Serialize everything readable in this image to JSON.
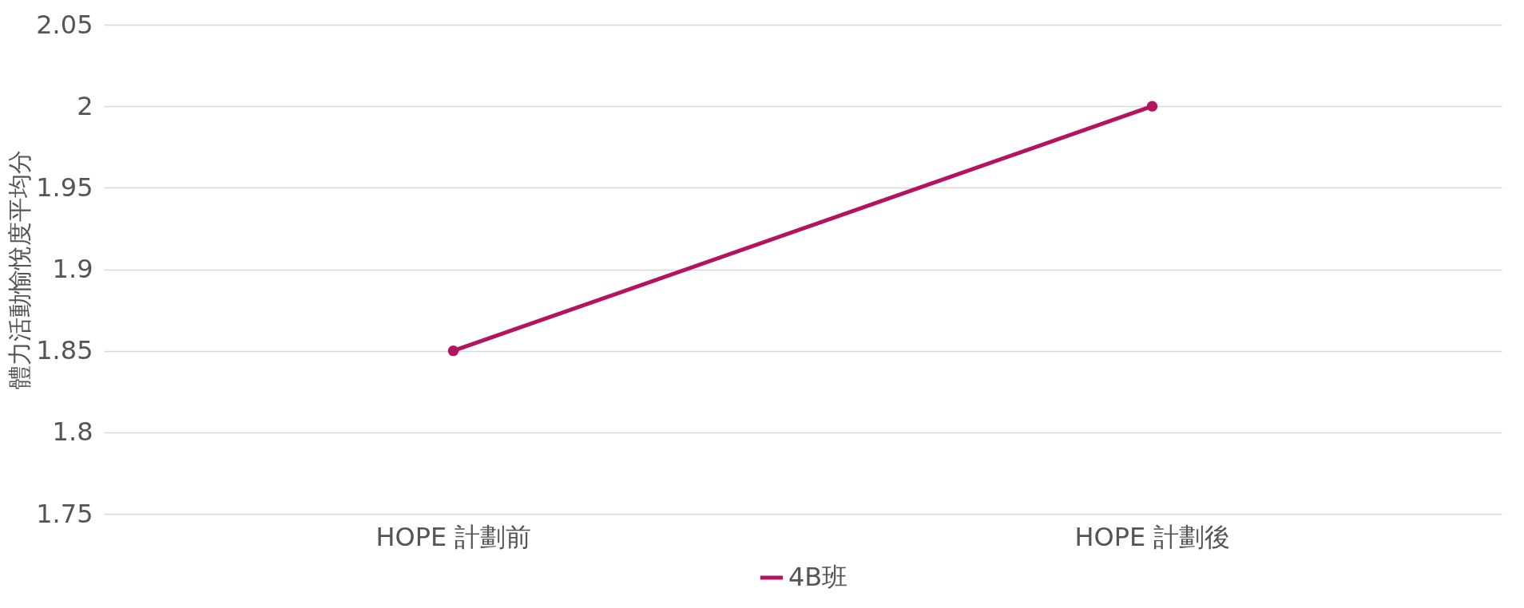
{
  "chart_data": {
    "type": "line",
    "ylabel": "體力活動愉悅度平均分",
    "categories": [
      "HOPE 計劃前",
      "HOPE 計劃後"
    ],
    "series": [
      {
        "name": "4B班",
        "color": "#b5135f",
        "values": [
          1.85,
          2
        ]
      }
    ],
    "ylim": [
      1.75,
      2.05
    ],
    "yticks": [
      1.75,
      1.8,
      1.85,
      1.9,
      1.95,
      2,
      2.05
    ],
    "grid": "y",
    "legend": "bottom",
    "marker": "circle",
    "line_style": "solid"
  }
}
